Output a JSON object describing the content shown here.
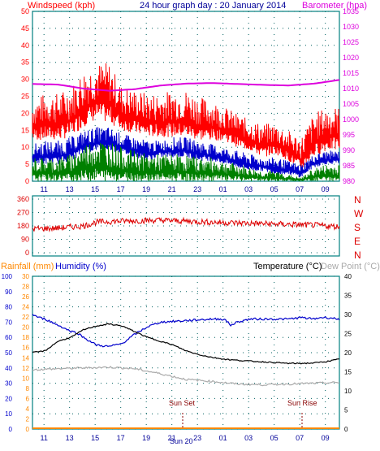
{
  "header": {
    "windspeed_label": "Windspeed (kph)",
    "title": "24 hour graph day : 20 January 2014",
    "barometer_label": "Barometer (hpa)"
  },
  "bottom_labels": {
    "rainfall": "Rainfall (mm)",
    "humidity": "Humidity (%)",
    "temperature": "Temperature (°C)",
    "dewpoint": "Dew Point (°C)",
    "sunset": "Sun Set",
    "sunrise": "Sun Rise",
    "time_marker": "Sun 20"
  },
  "colors": {
    "wind_avg": "#0000cc",
    "wind_gust": "#ff0000",
    "wind_min": "#008000",
    "barometer": "#dd00dd",
    "direction": "#dd0000",
    "temperature": "#000000",
    "humidity": "#0000cc",
    "dewpoint": "#aaaaaa",
    "rainfall": "#ff8800",
    "frame": "#008080",
    "grid": "#006060"
  },
  "chart_data": [
    {
      "type": "line",
      "name": "wind-and-pressure",
      "x_ticks": [
        "11",
        "13",
        "15",
        "17",
        "19",
        "21",
        "23",
        "01",
        "03",
        "05",
        "07",
        "09"
      ],
      "y_left_ticks": [
        0,
        5,
        10,
        15,
        20,
        25,
        30,
        35,
        40,
        45,
        50
      ],
      "y_left_range": [
        0,
        50
      ],
      "y_right_ticks": [
        980,
        985,
        990,
        995,
        1000,
        1005,
        1010,
        1015,
        1020,
        1025,
        1030,
        1035
      ],
      "y_right_range": [
        980,
        1035
      ],
      "series": [
        {
          "name": "Gust",
          "x": [
            0,
            1,
            2,
            3,
            4,
            5,
            6,
            7,
            8,
            9,
            10,
            11,
            12,
            13,
            14,
            15,
            16,
            17,
            18,
            19,
            20,
            21,
            22,
            23,
            24
          ],
          "lo": [
            12,
            12,
            12,
            13,
            16,
            18,
            17,
            15,
            14,
            13,
            13,
            13,
            13,
            12,
            12,
            12,
            10,
            9,
            7,
            8,
            6,
            3,
            7,
            9,
            9
          ],
          "hi": [
            24,
            26,
            26,
            28,
            33,
            35,
            35,
            28,
            27,
            26,
            26,
            27,
            27,
            25,
            24,
            22,
            20,
            18,
            17,
            17,
            15,
            13,
            20,
            22,
            22
          ]
        },
        {
          "name": "Average",
          "x": [
            0,
            1,
            2,
            3,
            4,
            5,
            6,
            7,
            8,
            9,
            10,
            11,
            12,
            13,
            14,
            15,
            16,
            17,
            18,
            19,
            20,
            21,
            22,
            23,
            24
          ],
          "lo": [
            5,
            5,
            5,
            6,
            8,
            9,
            9,
            8,
            7,
            6,
            7,
            7,
            7,
            6,
            6,
            5,
            4,
            3,
            3,
            2,
            2,
            1,
            4,
            5,
            5
          ],
          "hi": [
            11,
            12,
            12,
            13,
            15,
            16,
            16,
            14,
            13,
            12,
            12,
            13,
            13,
            12,
            11,
            10,
            9,
            8,
            7,
            7,
            6,
            5,
            8,
            9,
            9
          ]
        },
        {
          "name": "Minimum",
          "x": [
            0,
            1,
            2,
            3,
            4,
            5,
            6,
            7,
            8,
            9,
            10,
            11,
            12,
            13,
            14,
            15,
            16,
            17,
            18,
            19,
            20,
            21,
            22,
            23,
            24
          ],
          "lo": [
            0,
            0,
            0,
            0,
            0,
            0,
            0,
            0,
            0,
            0,
            0,
            0,
            0,
            0,
            0,
            0,
            0,
            0,
            0,
            0,
            0,
            0,
            0,
            0,
            0
          ],
          "hi": [
            7,
            7,
            7,
            8,
            11,
            13,
            12,
            10,
            9,
            8,
            8,
            8,
            8,
            7,
            7,
            6,
            5,
            4,
            3,
            3,
            2,
            1,
            4,
            5,
            5
          ]
        },
        {
          "name": "Barometer",
          "x": [
            0,
            2,
            4,
            6,
            8,
            10,
            12,
            14,
            16,
            18,
            20,
            22,
            24
          ],
          "values": [
            1011.5,
            1011.3,
            1010,
            1009.3,
            1009.8,
            1011,
            1011.6,
            1011.8,
            1011.5,
            1011.2,
            1011,
            1011.6,
            1012.8
          ]
        }
      ]
    },
    {
      "type": "line",
      "name": "wind-direction",
      "y_ticks": [
        0,
        90,
        180,
        270,
        360
      ],
      "y_range": [
        0,
        360
      ],
      "compass_labels": [
        "N",
        "W",
        "S",
        "E",
        "N"
      ],
      "series": [
        {
          "name": "Direction",
          "x": [
            0,
            2,
            4,
            5,
            6,
            8,
            10,
            12,
            14,
            16,
            18,
            20,
            22,
            24
          ],
          "values": [
            160,
            165,
            180,
            205,
            210,
            215,
            218,
            212,
            205,
            200,
            195,
            190,
            185,
            175
          ]
        }
      ]
    },
    {
      "type": "line",
      "name": "temperature-humidity-rain",
      "y_humidity_ticks": [
        0,
        10,
        20,
        30,
        40,
        50,
        60,
        70,
        80,
        90,
        100
      ],
      "y_humidity_range": [
        0,
        100
      ],
      "y_rain_ticks": [
        0,
        2,
        4,
        6,
        8,
        10,
        12,
        14,
        16,
        18,
        20,
        22,
        24,
        26,
        28,
        30
      ],
      "y_rain_range": [
        0,
        30
      ],
      "y_temp_ticks": [
        0,
        5,
        10,
        15,
        20,
        25,
        30,
        35,
        40
      ],
      "y_temp_range": [
        0,
        40
      ],
      "series": [
        {
          "name": "Humidity",
          "x": [
            0,
            0.5,
            1,
            2,
            2.5,
            3,
            3.5,
            4,
            5,
            6,
            7,
            8,
            9,
            10,
            12,
            14,
            15,
            15.5,
            16,
            17,
            18,
            19,
            20,
            21,
            22,
            22.5,
            23,
            24
          ],
          "values": [
            75,
            73,
            72,
            68,
            66,
            64,
            63,
            60,
            55,
            54,
            56,
            62,
            67,
            70,
            71,
            72,
            72,
            68,
            70,
            72,
            72,
            72,
            72,
            73,
            72,
            73,
            73,
            72
          ]
        },
        {
          "name": "Temperature",
          "x": [
            0,
            1,
            2,
            3,
            4,
            5,
            6,
            7,
            8,
            9,
            10,
            11,
            12,
            13,
            14,
            15,
            16,
            17,
            18,
            19,
            20,
            21,
            22,
            23,
            24
          ],
          "values": [
            20,
            20.5,
            23,
            24,
            26,
            27,
            27.5,
            27,
            25.5,
            24,
            23,
            22,
            20.5,
            19.5,
            18.8,
            18.3,
            18,
            17.8,
            17.6,
            17.4,
            17.2,
            17.2,
            17.3,
            17.7,
            18.3
          ]
        },
        {
          "name": "Dew Point",
          "x": [
            0,
            2,
            4,
            6,
            8,
            10,
            12,
            14,
            16,
            18,
            20,
            22,
            24
          ],
          "values": [
            15.5,
            15.8,
            16,
            16.2,
            15.8,
            14.5,
            13,
            12.5,
            11.8,
            11.6,
            11.8,
            12,
            12.2
          ]
        },
        {
          "name": "Rainfall",
          "x": [
            0,
            24
          ],
          "values": [
            0,
            0
          ]
        }
      ]
    }
  ]
}
